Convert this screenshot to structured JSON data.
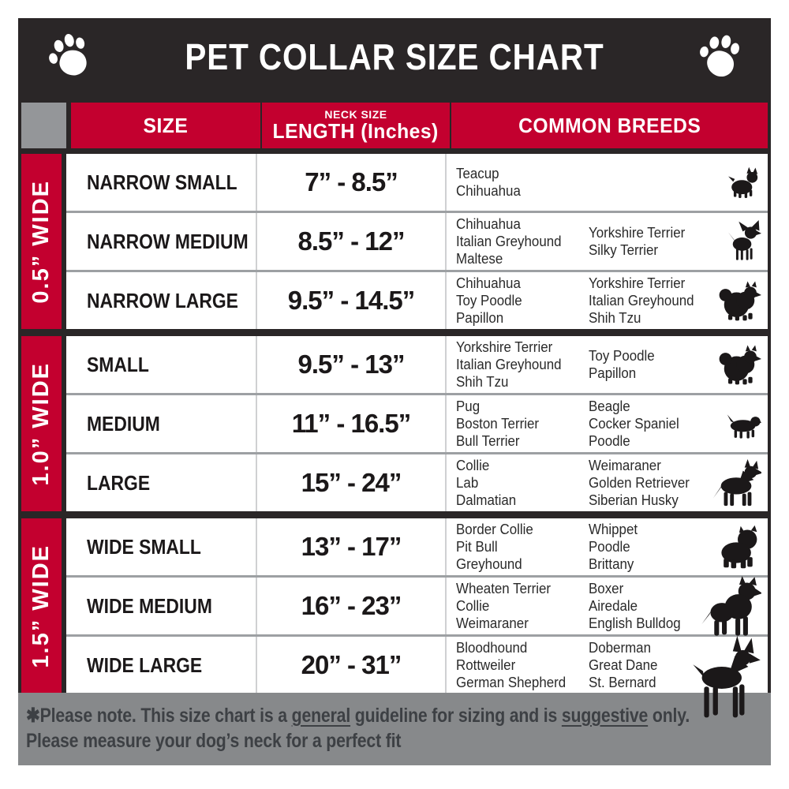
{
  "header": {
    "title": "PET COLLAR SIZE CHART",
    "left_icon": "paw-icon",
    "right_icon": "paw-icon"
  },
  "table_header": {
    "size_label": "SIZE",
    "neck_size_label": "NECK SIZE",
    "length_label": "LENGTH (Inches)",
    "breeds_label": "COMMON BREEDS"
  },
  "chart_data": {
    "type": "table",
    "title": "PET COLLAR SIZE CHART",
    "columns": [
      "SIZE",
      "NECK SIZE LENGTH (Inches)",
      "COMMON BREEDS"
    ],
    "groups": [
      {
        "width_label": "0.5” WIDE",
        "rows": [
          {
            "size": "NARROW SMALL",
            "neck_length": "7” - 8.5”",
            "breeds_col1": [
              "Teacup",
              "Chihuahua"
            ],
            "breeds_col2": [],
            "icon": "yorkshire-terrier-icon"
          },
          {
            "size": "NARROW MEDIUM",
            "neck_length": "8.5” - 12”",
            "breeds_col1": [
              "Chihuahua",
              "Italian Greyhound",
              "Maltese"
            ],
            "breeds_col2": [
              "Yorkshire Terrier",
              "Silky Terrier"
            ],
            "icon": "chihuahua-icon"
          },
          {
            "size": "NARROW LARGE",
            "neck_length": "9.5” - 14.5”",
            "breeds_col1": [
              "Chihuahua",
              "Toy Poodle",
              "Papillon"
            ],
            "breeds_col2": [
              "Yorkshire Terrier",
              "Italian Greyhound",
              "Shih Tzu"
            ],
            "icon": "pomeranian-icon"
          }
        ]
      },
      {
        "width_label": "1.0” WIDE",
        "rows": [
          {
            "size": "SMALL",
            "neck_length": "9.5” - 13”",
            "breeds_col1": [
              "Yorkshire Terrier",
              "Italian Greyhound",
              "Shih Tzu"
            ],
            "breeds_col2": [
              "Toy Poodle",
              "Papillon"
            ],
            "icon": "pekingese-icon"
          },
          {
            "size": "MEDIUM",
            "neck_length": "11” - 16.5”",
            "breeds_col1": [
              "Pug",
              "Boston Terrier",
              "Bull Terrier"
            ],
            "breeds_col2": [
              "Beagle",
              "Cocker Spaniel",
              "Poodle"
            ],
            "icon": "spaniel-icon"
          },
          {
            "size": "LARGE",
            "neck_length": "15” - 24”",
            "breeds_col1": [
              "Collie",
              "Lab",
              "Dalmatian"
            ],
            "breeds_col2": [
              "Weimaraner",
              "Golden Retriever",
              "Siberian Husky"
            ],
            "icon": "shepherd-dog-icon"
          }
        ]
      },
      {
        "width_label": "1.5” WIDE",
        "rows": [
          {
            "size": "WIDE SMALL",
            "neck_length": "13” - 17”",
            "breeds_col1": [
              "Border Collie",
              "Pit Bull",
              "Greyhound"
            ],
            "breeds_col2": [
              "Whippet",
              "Poodle",
              "Brittany"
            ],
            "icon": "bulldog-icon"
          },
          {
            "size": "WIDE MEDIUM",
            "neck_length": "16” - 23”",
            "breeds_col1": [
              "Wheaten Terrier",
              "Collie",
              "Weimaraner"
            ],
            "breeds_col2": [
              "Boxer",
              "Airedale",
              "English Bulldog"
            ],
            "icon": "pitbull-icon"
          },
          {
            "size": "WIDE LARGE",
            "neck_length": "20” - 31”",
            "breeds_col1": [
              "Bloodhound",
              "Rottweiler",
              "German Shepherd"
            ],
            "breeds_col2": [
              "Doberman",
              "Great Dane",
              "St. Bernard"
            ],
            "icon": "doberman-icon"
          }
        ]
      }
    ]
  },
  "footer": {
    "line1_segments": [
      {
        "text": "✱Please note. This size chart is a "
      },
      {
        "text": "general",
        "underline": true
      },
      {
        "text": " guideline for sizing and is "
      },
      {
        "text": "suggestive",
        "underline": true
      },
      {
        "text": " only."
      }
    ],
    "line2": "Please measure your dog’s neck for a perfect fit"
  },
  "colors": {
    "accent_red": "#c3002f",
    "frame_black": "#2a2627",
    "footer_bg": "#87898b",
    "footer_text": "#3d4044",
    "header_gray_cell": "#949699",
    "row_separator": "#9da0a3",
    "column_separator": "#cfd0d2"
  }
}
